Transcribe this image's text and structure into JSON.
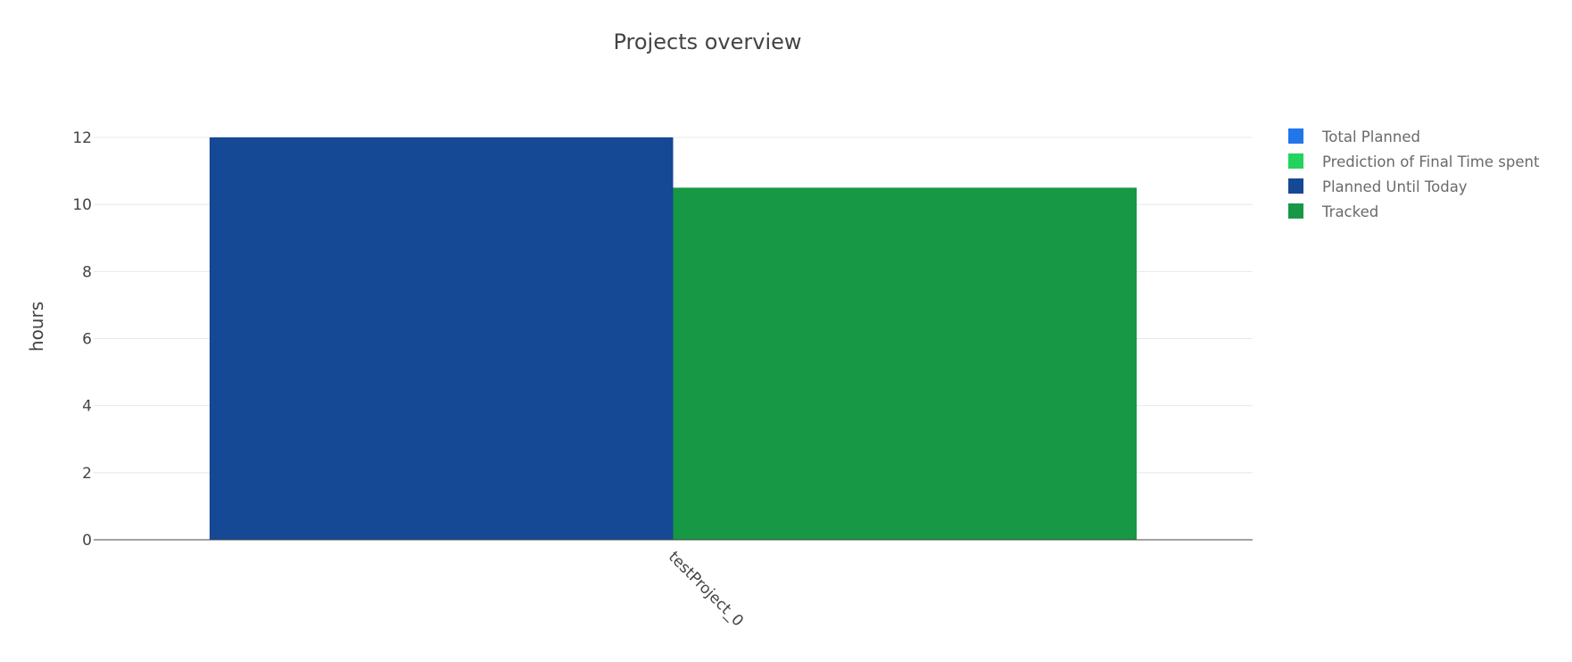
{
  "chart_data": {
    "type": "bar",
    "title": "Projects overview",
    "xlabel": "",
    "ylabel": "hours",
    "categories": [
      "testProject_0"
    ],
    "ylim": [
      0,
      12
    ],
    "yticks": [
      0,
      2,
      4,
      6,
      8,
      10,
      12
    ],
    "grid": true,
    "legend_position": "top-right",
    "series": [
      {
        "name": "Total Planned",
        "color": "#2176ea",
        "values": [
          0
        ]
      },
      {
        "name": "Prediction of Final Time spent",
        "color": "#23d35e",
        "values": [
          0
        ]
      },
      {
        "name": "Planned Until Today",
        "color": "#154895",
        "values": [
          12
        ]
      },
      {
        "name": "Tracked",
        "color": "#169845",
        "values": [
          10.5
        ]
      }
    ]
  }
}
